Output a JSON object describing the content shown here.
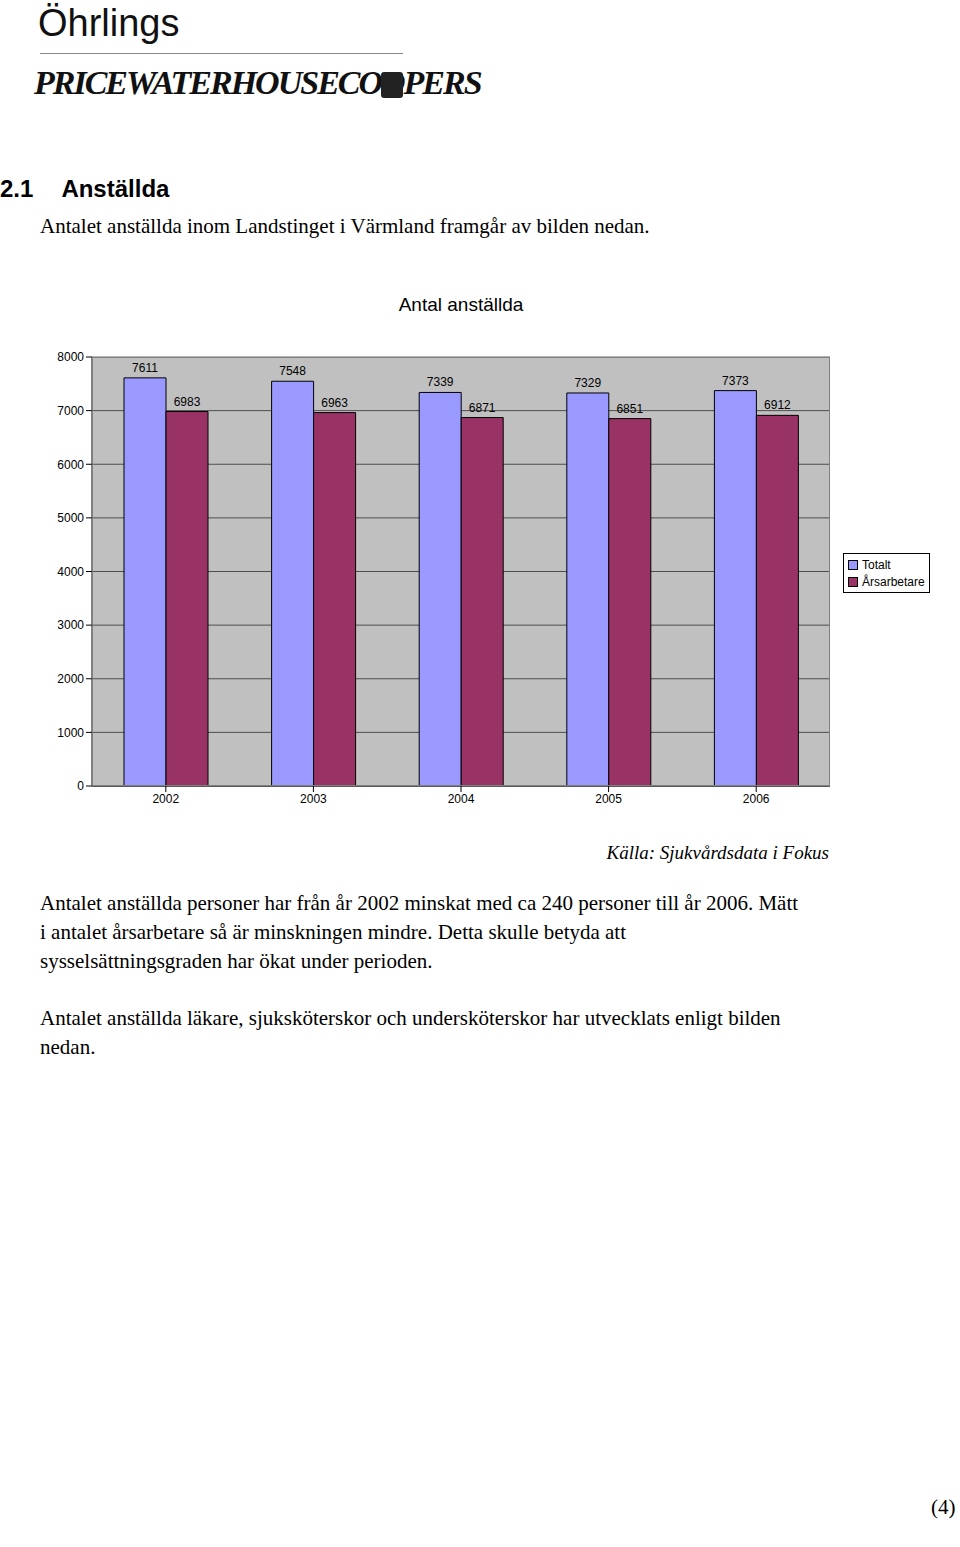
{
  "header": {
    "brand": "Öhrlings",
    "firm": "PRICEWATERHOUSECOOPERS"
  },
  "section": {
    "number": "2.1",
    "title": "Anställda"
  },
  "intro": "Antalet anställda inom Landstinget i Värmland framgår av bilden nedan.",
  "chart_data": {
    "type": "bar",
    "title": "Antal anställda",
    "categories": [
      "2002",
      "2003",
      "2004",
      "2005",
      "2006"
    ],
    "series": [
      {
        "name": "Totalt",
        "color": "#9999ff",
        "values": [
          7611,
          7548,
          7339,
          7329,
          7373
        ]
      },
      {
        "name": "Årsarbetare",
        "color": "#993366",
        "values": [
          6983,
          6963,
          6871,
          6851,
          6912
        ]
      }
    ],
    "ylim": [
      0,
      8000
    ],
    "yticks": [
      0,
      1000,
      2000,
      3000,
      4000,
      5000,
      6000,
      7000,
      8000
    ],
    "grid": true,
    "legend": "right",
    "data_labels": true
  },
  "source": "Källa: Sjukvårdsdata i Fokus",
  "paragraphs": [
    [
      "Antalet anställda personer har från år 2002 minskat med ca 240 personer till år 2006. Mätt",
      "i antalet årsarbetare så är minskningen mindre. Detta skulle betyda att",
      "sysselsättningsgraden har ökat under perioden."
    ],
    [
      "Antalet anställda läkare, sjuksköterskor och undersköterskor har utvecklats enligt bilden",
      "nedan."
    ]
  ],
  "page_number": "(4)"
}
